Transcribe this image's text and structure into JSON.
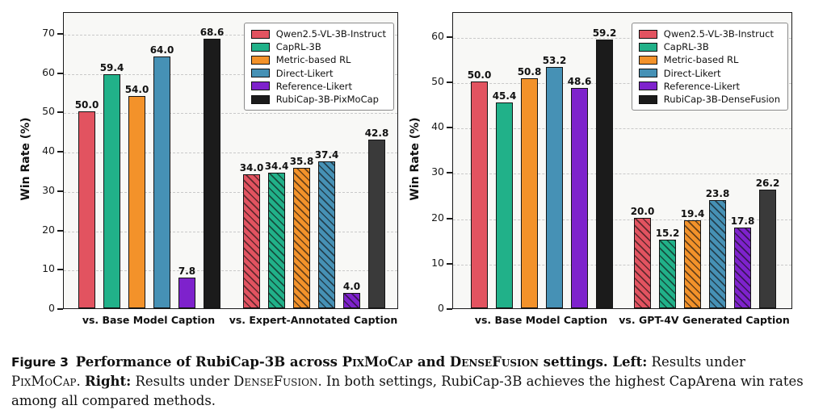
{
  "caption": {
    "label": "Figure 3",
    "bold_intro": "Performance of RubiCap-3B across ",
    "bold_sc_pixmocap": "PixMoCap",
    "bold_and": " and ",
    "bold_sc_densefusion": "DenseFusion",
    "bold_settings": " settings. ",
    "left_label": "Left:",
    "left_text": " Results under ",
    "sc_pixmocap": "PixMoCap",
    "period": ". ",
    "right_label": "Right:",
    "right_text": " Results under ",
    "sc_densefusion": "DenseFusion",
    "tail": ". In both settings, RubiCap-3B achieves the highest CapArena win rates among all compared methods."
  },
  "chart_data": [
    {
      "type": "bar",
      "title": "",
      "xlabel": "",
      "ylabel": "Win Rate (%)",
      "ylim": [
        0,
        75
      ],
      "yticks": [
        0,
        10,
        20,
        30,
        40,
        50,
        60,
        70
      ],
      "grid": "horizontal-dashed",
      "legend_position": "upper right",
      "categories": [
        "vs. Base Model Caption",
        "vs. Expert-Annotated Caption"
      ],
      "hatched_category_index": 1,
      "series": [
        {
          "name": "Qwen2.5-VL-3B-Instruct",
          "color": "#e25360",
          "values": [
            50.0,
            34.0
          ]
        },
        {
          "name": "CapRL-3B",
          "color": "#21b189",
          "values": [
            59.4,
            34.4
          ]
        },
        {
          "name": "Metric-based RL",
          "color": "#f3922a",
          "values": [
            54.0,
            35.8
          ]
        },
        {
          "name": "Direct-Likert",
          "color": "#4691b5",
          "values": [
            64.0,
            37.4
          ]
        },
        {
          "name": "Reference-Likert",
          "color": "#7e22cc",
          "values": [
            7.8,
            4.0
          ]
        },
        {
          "name": "RubiCap-3B-PixMoCap",
          "color": "#1b1b1b",
          "color_hatched": "#3a3a3a",
          "values": [
            68.6,
            42.8
          ]
        }
      ]
    },
    {
      "type": "bar",
      "title": "",
      "xlabel": "",
      "ylabel": "Win Rate (%)",
      "ylim": [
        0,
        65
      ],
      "yticks": [
        0,
        10,
        20,
        30,
        40,
        50,
        60
      ],
      "grid": "horizontal-dashed",
      "legend_position": "upper right",
      "categories": [
        "vs. Base Model Caption",
        "vs. GPT-4V Generated Caption"
      ],
      "hatched_category_index": 1,
      "series": [
        {
          "name": "Qwen2.5-VL-3B-Instruct",
          "color": "#e25360",
          "values": [
            50.0,
            20.0
          ]
        },
        {
          "name": "CapRL-3B",
          "color": "#21b189",
          "values": [
            45.4,
            15.2
          ]
        },
        {
          "name": "Metric-based RL",
          "color": "#f3922a",
          "values": [
            50.8,
            19.4
          ]
        },
        {
          "name": "Direct-Likert",
          "color": "#4691b5",
          "values": [
            53.2,
            23.8
          ]
        },
        {
          "name": "Reference-Likert",
          "color": "#7e22cc",
          "values": [
            48.6,
            17.8
          ]
        },
        {
          "name": "RubiCap-3B-DenseFusion",
          "color": "#1b1b1b",
          "color_hatched": "#3a3a3a",
          "values": [
            59.2,
            26.2
          ]
        }
      ]
    }
  ]
}
